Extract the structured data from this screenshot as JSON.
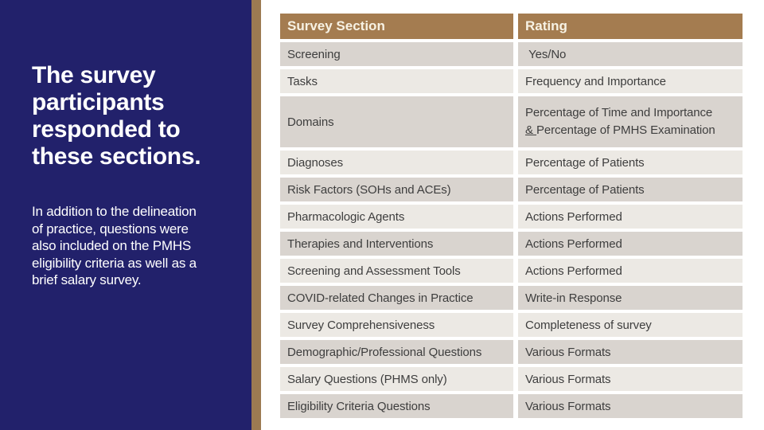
{
  "slide": {
    "title": "The survey participants responded to these sections.",
    "title_lines": [
      "The survey",
      "participants",
      "responded to",
      "these sections."
    ],
    "body": "In addition to the delineation of practice, questions were also included on the PMHS eligibility criteria as well as a brief salary survey.",
    "body_lines": [
      "In addition to the delineation",
      "of practice, questions were",
      "also included on the PMHS",
      "eligibility criteria as well as a",
      "brief salary survey."
    ]
  },
  "colors": {
    "navy_background": "#22216B",
    "accent_stripe": "#9C7A52",
    "table_header_background": "#A47C50",
    "table_header_text": "#F7F2E4",
    "row_band_dark": "#D9D4CF",
    "row_band_light": "#ECE9E4",
    "row_text": "#3E3E3E",
    "title_text": "#FFFFFF",
    "body_text": "#FFFFFF",
    "page_background": "#FFFFFF"
  },
  "table": {
    "headers": [
      "Survey Section",
      "Rating"
    ],
    "rows": [
      {
        "section": "Screening",
        "rating": " Yes/No",
        "band": "dark"
      },
      {
        "section": "Tasks",
        "rating": "Frequency and Importance",
        "band": "light"
      },
      {
        "section": "Domains",
        "rating_lines": [
          {
            "text": "Percentage of Time and Importance"
          },
          {
            "underlined_prefix": "& ",
            "text": "Percentage of PMHS Examination"
          }
        ],
        "band": "dark",
        "tall": true
      },
      {
        "section": "Diagnoses",
        "rating": "Percentage of Patients",
        "band": "light"
      },
      {
        "section": "Risk Factors (SOHs and ACEs)",
        "rating": "Percentage of Patients",
        "band": "dark"
      },
      {
        "section": "Pharmacologic Agents",
        "rating": "Actions Performed",
        "band": "light"
      },
      {
        "section": "Therapies and Interventions",
        "rating": "Actions Performed",
        "band": "dark"
      },
      {
        "section": "Screening and Assessment Tools",
        "rating": "Actions Performed",
        "band": "light"
      },
      {
        "section": "COVID-related Changes in Practice",
        "rating": "Write-in Response",
        "band": "dark"
      },
      {
        "section": "Survey Comprehensiveness",
        "rating": "Completeness of survey",
        "band": "light"
      },
      {
        "section": "Demographic/Professional Questions",
        "rating": "Various Formats",
        "band": "dark"
      },
      {
        "section": "Salary Questions (PHMS only)",
        "rating": "Various Formats",
        "band": "light"
      },
      {
        "section": "Eligibility Criteria Questions",
        "rating": "Various Formats",
        "band": "dark"
      }
    ]
  }
}
